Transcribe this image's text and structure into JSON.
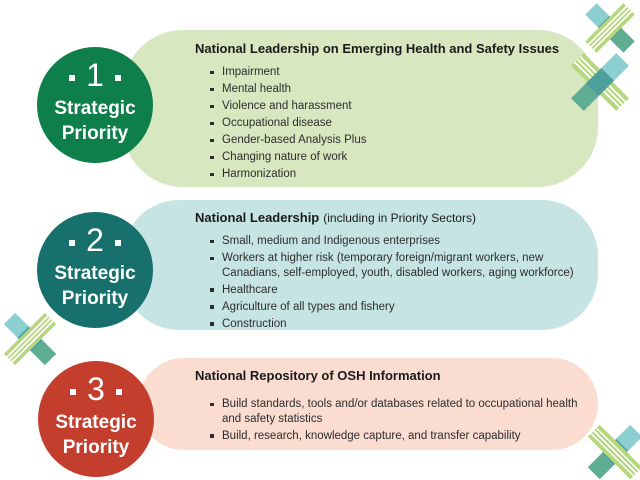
{
  "colors": {
    "background": "#ffffff",
    "title_text": "#1a1a1a",
    "body_text": "#2d2d2d",
    "badge_text": "#ffffff",
    "priority1_circle": "#0e7e4b",
    "priority1_panel": "#d7e7c0",
    "priority2_circle": "#18706d",
    "priority2_panel": "#c5e4e3",
    "priority3_circle": "#c43e2e",
    "priority3_panel": "#fadcd1"
  },
  "priorities": [
    {
      "number": "1",
      "label_line1": "Strategic",
      "label_line2": "Priority",
      "title": "National Leadership on Emerging Health and Safety Issues",
      "title_note": "",
      "bullets": [
        "Impairment",
        "Mental health",
        "Violence and harassment",
        "Occupational disease",
        "Gender-based Analysis Plus",
        "Changing nature of work",
        "Harmonization"
      ]
    },
    {
      "number": "2",
      "label_line1": "Strategic",
      "label_line2": "Priority",
      "title": "National Leadership",
      "title_note": "(including in Priority Sectors)",
      "bullets": [
        "Small, medium and Indigenous enterprises",
        "Workers at higher risk (temporary foreign/migrant workers, new Canadians, self-employed, youth, disabled workers, aging workforce)",
        "Healthcare",
        "Agriculture of all types and fishery",
        "Construction"
      ]
    },
    {
      "number": "3",
      "label_line1": "Strategic",
      "label_line2": "Priority",
      "title": "National Repository of OSH Information",
      "title_note": "",
      "bullets": [
        "Build standards, tools and/or databases related to occupational health and safety statistics",
        "Build, research, knowledge capture, and transfer capability"
      ]
    }
  ],
  "decorations": {
    "cross_positions": [
      "top-right-upper",
      "top-right-lower",
      "middle-left",
      "bottom-right"
    ],
    "cross_teal_light": "#8ccfd0",
    "cross_teal_medium": "#4d9f9c",
    "cross_teal_green": "#5fae94",
    "cross_stripe_green": "#b7d680",
    "cross_stripe_white": "#ffffff"
  }
}
